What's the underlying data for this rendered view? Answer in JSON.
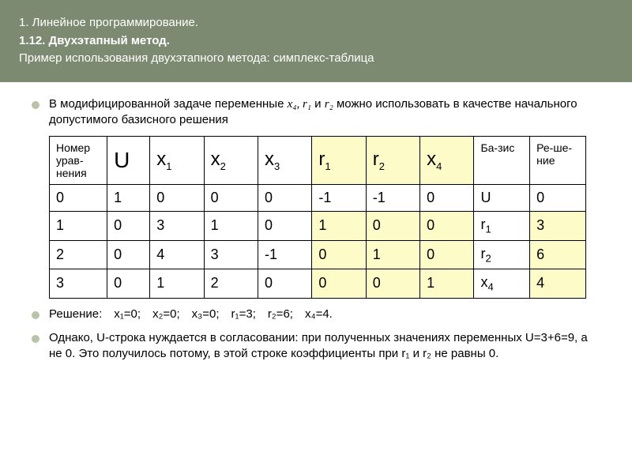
{
  "header": {
    "line1": "1. Линейное программирование.",
    "line2": "1.12. Двухэтапный метод.",
    "line3": "Пример использования двухэтапного метода: симплекс-таблица"
  },
  "bullets": {
    "intro_pre": "В модифицированной задаче переменные ",
    "intro_vars": "x₄, r₁",
    "intro_and": " и ",
    "intro_var_r2": "r₂",
    "intro_post": " можно использовать в качестве начального допустимого базисного решения",
    "solution": "Решение: x₁=0; x₂=0; x₃=0; r₁=3; r₂=6; x₄=4.",
    "note": "Однако, U-строка нуждается в согласовании: при полученных значениях переменных U=3+6=9, а не 0. Это получилось потому, в этой строке коэффициенты при r₁ и r₂ не равны 0."
  },
  "table": {
    "headers": {
      "c0": "Номер урав-нения",
      "c1": "U",
      "c2": "x",
      "c2sub": "1",
      "c3": "x",
      "c3sub": "2",
      "c4": "x",
      "c4sub": "3",
      "c5": "r",
      "c5sub": "1",
      "c6": "r",
      "c6sub": "2",
      "c7": "x",
      "c7sub": "4",
      "c8": "Ба-зис",
      "c9": "Ре-ше-ние"
    },
    "rows": [
      {
        "c0": "0",
        "c1": "1",
        "c2": "0",
        "c3": "0",
        "c4": "0",
        "c5": "-1",
        "c6": "-1",
        "c7": "0",
        "c8": "U",
        "c9": "0",
        "hl": []
      },
      {
        "c0": "1",
        "c1": "0",
        "c2": "3",
        "c3": "1",
        "c4": "0",
        "c5": "1",
        "c6": "0",
        "c7": "0",
        "c8": "r",
        "c8sub": "1",
        "c9": "3",
        "hl": [
          5,
          6,
          7,
          9
        ]
      },
      {
        "c0": "2",
        "c1": "0",
        "c2": "4",
        "c3": "3",
        "c4": "-1",
        "c5": "0",
        "c6": "1",
        "c7": "0",
        "c8": "r",
        "c8sub": "2",
        "c9": "6",
        "hl": [
          5,
          6,
          7,
          9
        ]
      },
      {
        "c0": "3",
        "c1": "0",
        "c2": "1",
        "c3": "2",
        "c4": "0",
        "c5": "0",
        "c6": "0",
        "c7": "1",
        "c8": "x",
        "c8sub": "4",
        "c9": "4",
        "hl": [
          5,
          6,
          7,
          9
        ]
      }
    ],
    "highlight_color": "#fdfcc8",
    "col_widths": [
      "62",
      "46",
      "58",
      "58",
      "58",
      "58",
      "58",
      "58",
      "60",
      "60"
    ]
  }
}
